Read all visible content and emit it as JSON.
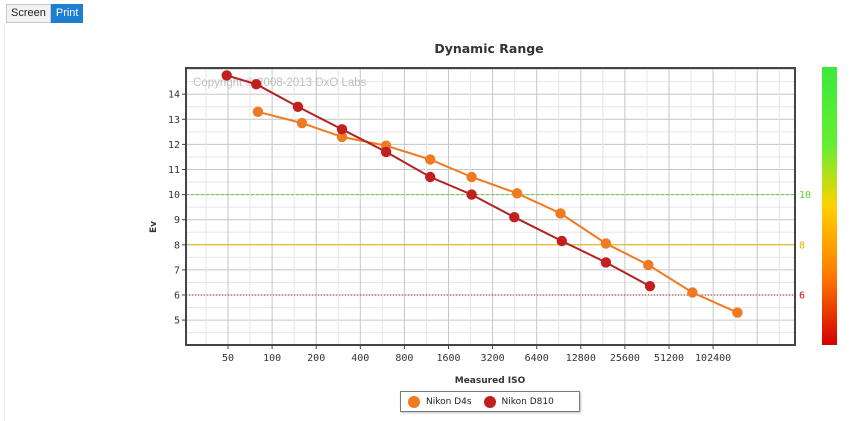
{
  "toolbar": {
    "screen_label": "Screen",
    "print_label": "Print",
    "active": "Print"
  },
  "chart_data": {
    "type": "line",
    "title": "Dynamic Range",
    "xlabel": "Measured ISO",
    "ylabel": "Ev",
    "x_scale": "log2",
    "x_ticks": [
      "50",
      "100",
      "200",
      "400",
      "800",
      "1600",
      "3200",
      "6400",
      "12800",
      "25600",
      "51200",
      "102400"
    ],
    "y_ticks": [
      5,
      6,
      7,
      8,
      9,
      10,
      11,
      12,
      13,
      14
    ],
    "watermark": "Copyright © 2008-2013 DxO Labs",
    "grid": true,
    "legend_position": "bottom-center",
    "reference_lines": [
      {
        "value": 10,
        "label": "10",
        "color": "#66cc33",
        "style": "dashed"
      },
      {
        "value": 8,
        "label": "8",
        "color": "#e8b400",
        "style": "solid"
      },
      {
        "value": 6,
        "label": "6",
        "color": "#cc1111",
        "style": "dotted"
      }
    ],
    "color_scale": {
      "colors": [
        "#d40000",
        "#ff7a00",
        "#ffd200",
        "#66ee33",
        "#3ce83c"
      ]
    },
    "series": [
      {
        "name": "Nikon D4s",
        "color": "#f07a22",
        "line_color": "#f07a22",
        "x": [
          80,
          160,
          300,
          600,
          1200,
          2300,
          4700,
          9300,
          19000,
          37000,
          74000,
          150000
        ],
        "y": [
          13.3,
          12.85,
          12.3,
          11.95,
          11.4,
          10.7,
          10.05,
          9.25,
          8.05,
          7.2,
          6.1,
          5.3
        ]
      },
      {
        "name": "Nikon D810",
        "color": "#c21f1f",
        "line_color": "#b22222",
        "x": [
          49,
          78,
          150,
          300,
          600,
          1200,
          2300,
          4500,
          9500,
          19000,
          38000
        ],
        "y": [
          14.75,
          14.4,
          13.5,
          12.6,
          11.7,
          10.7,
          10.0,
          9.1,
          8.15,
          7.3,
          6.35
        ]
      }
    ]
  }
}
